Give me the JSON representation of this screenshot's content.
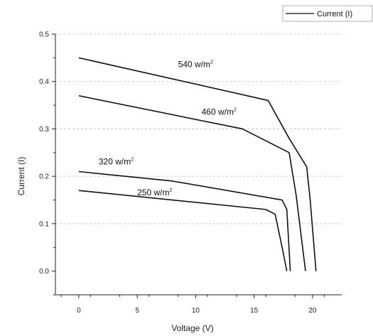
{
  "chart_data": {
    "type": "line",
    "xlabel": "Voltage (V)",
    "ylabel": "Current (I)",
    "xlim": [
      -2,
      22.5
    ],
    "ylim": [
      -0.05,
      0.5
    ],
    "xticks": [
      0,
      5,
      10,
      15,
      20
    ],
    "yticks": [
      0.0,
      0.1,
      0.2,
      0.3,
      0.4,
      0.5
    ],
    "ytick_labels": [
      "0.0",
      "0.1",
      "0.2",
      "0.3",
      "0.4",
      "0.5"
    ],
    "grid": "horizontal dashed",
    "legend": {
      "placement": "top-right",
      "entries": [
        "Current (I)"
      ]
    },
    "series": [
      {
        "label": "540 w/m2",
        "annotation_main": "540 w/m",
        "annotation_sup": "2",
        "x": [
          0,
          16.2,
          18.0,
          19.5,
          19.8,
          20.3
        ],
        "y": [
          0.45,
          0.36,
          0.28,
          0.22,
          0.15,
          0.0
        ]
      },
      {
        "label": "460 w/m2",
        "annotation_main": "460 w/m",
        "annotation_sup": "2",
        "x": [
          0,
          14.0,
          18.0,
          18.6,
          19.4
        ],
        "y": [
          0.37,
          0.3,
          0.25,
          0.16,
          0.0
        ]
      },
      {
        "label": "320 w/m2",
        "annotation_main": "320 w/m",
        "annotation_sup": "2",
        "x": [
          0,
          8.0,
          17.4,
          17.8,
          18.1
        ],
        "y": [
          0.21,
          0.19,
          0.15,
          0.13,
          0.0
        ]
      },
      {
        "label": "250 w/m2",
        "annotation_main": "250 w/m",
        "annotation_sup": "2",
        "x": [
          0,
          16.0,
          16.8,
          17.4,
          17.8
        ],
        "y": [
          0.17,
          0.13,
          0.12,
          0.05,
          0.0
        ]
      }
    ]
  }
}
